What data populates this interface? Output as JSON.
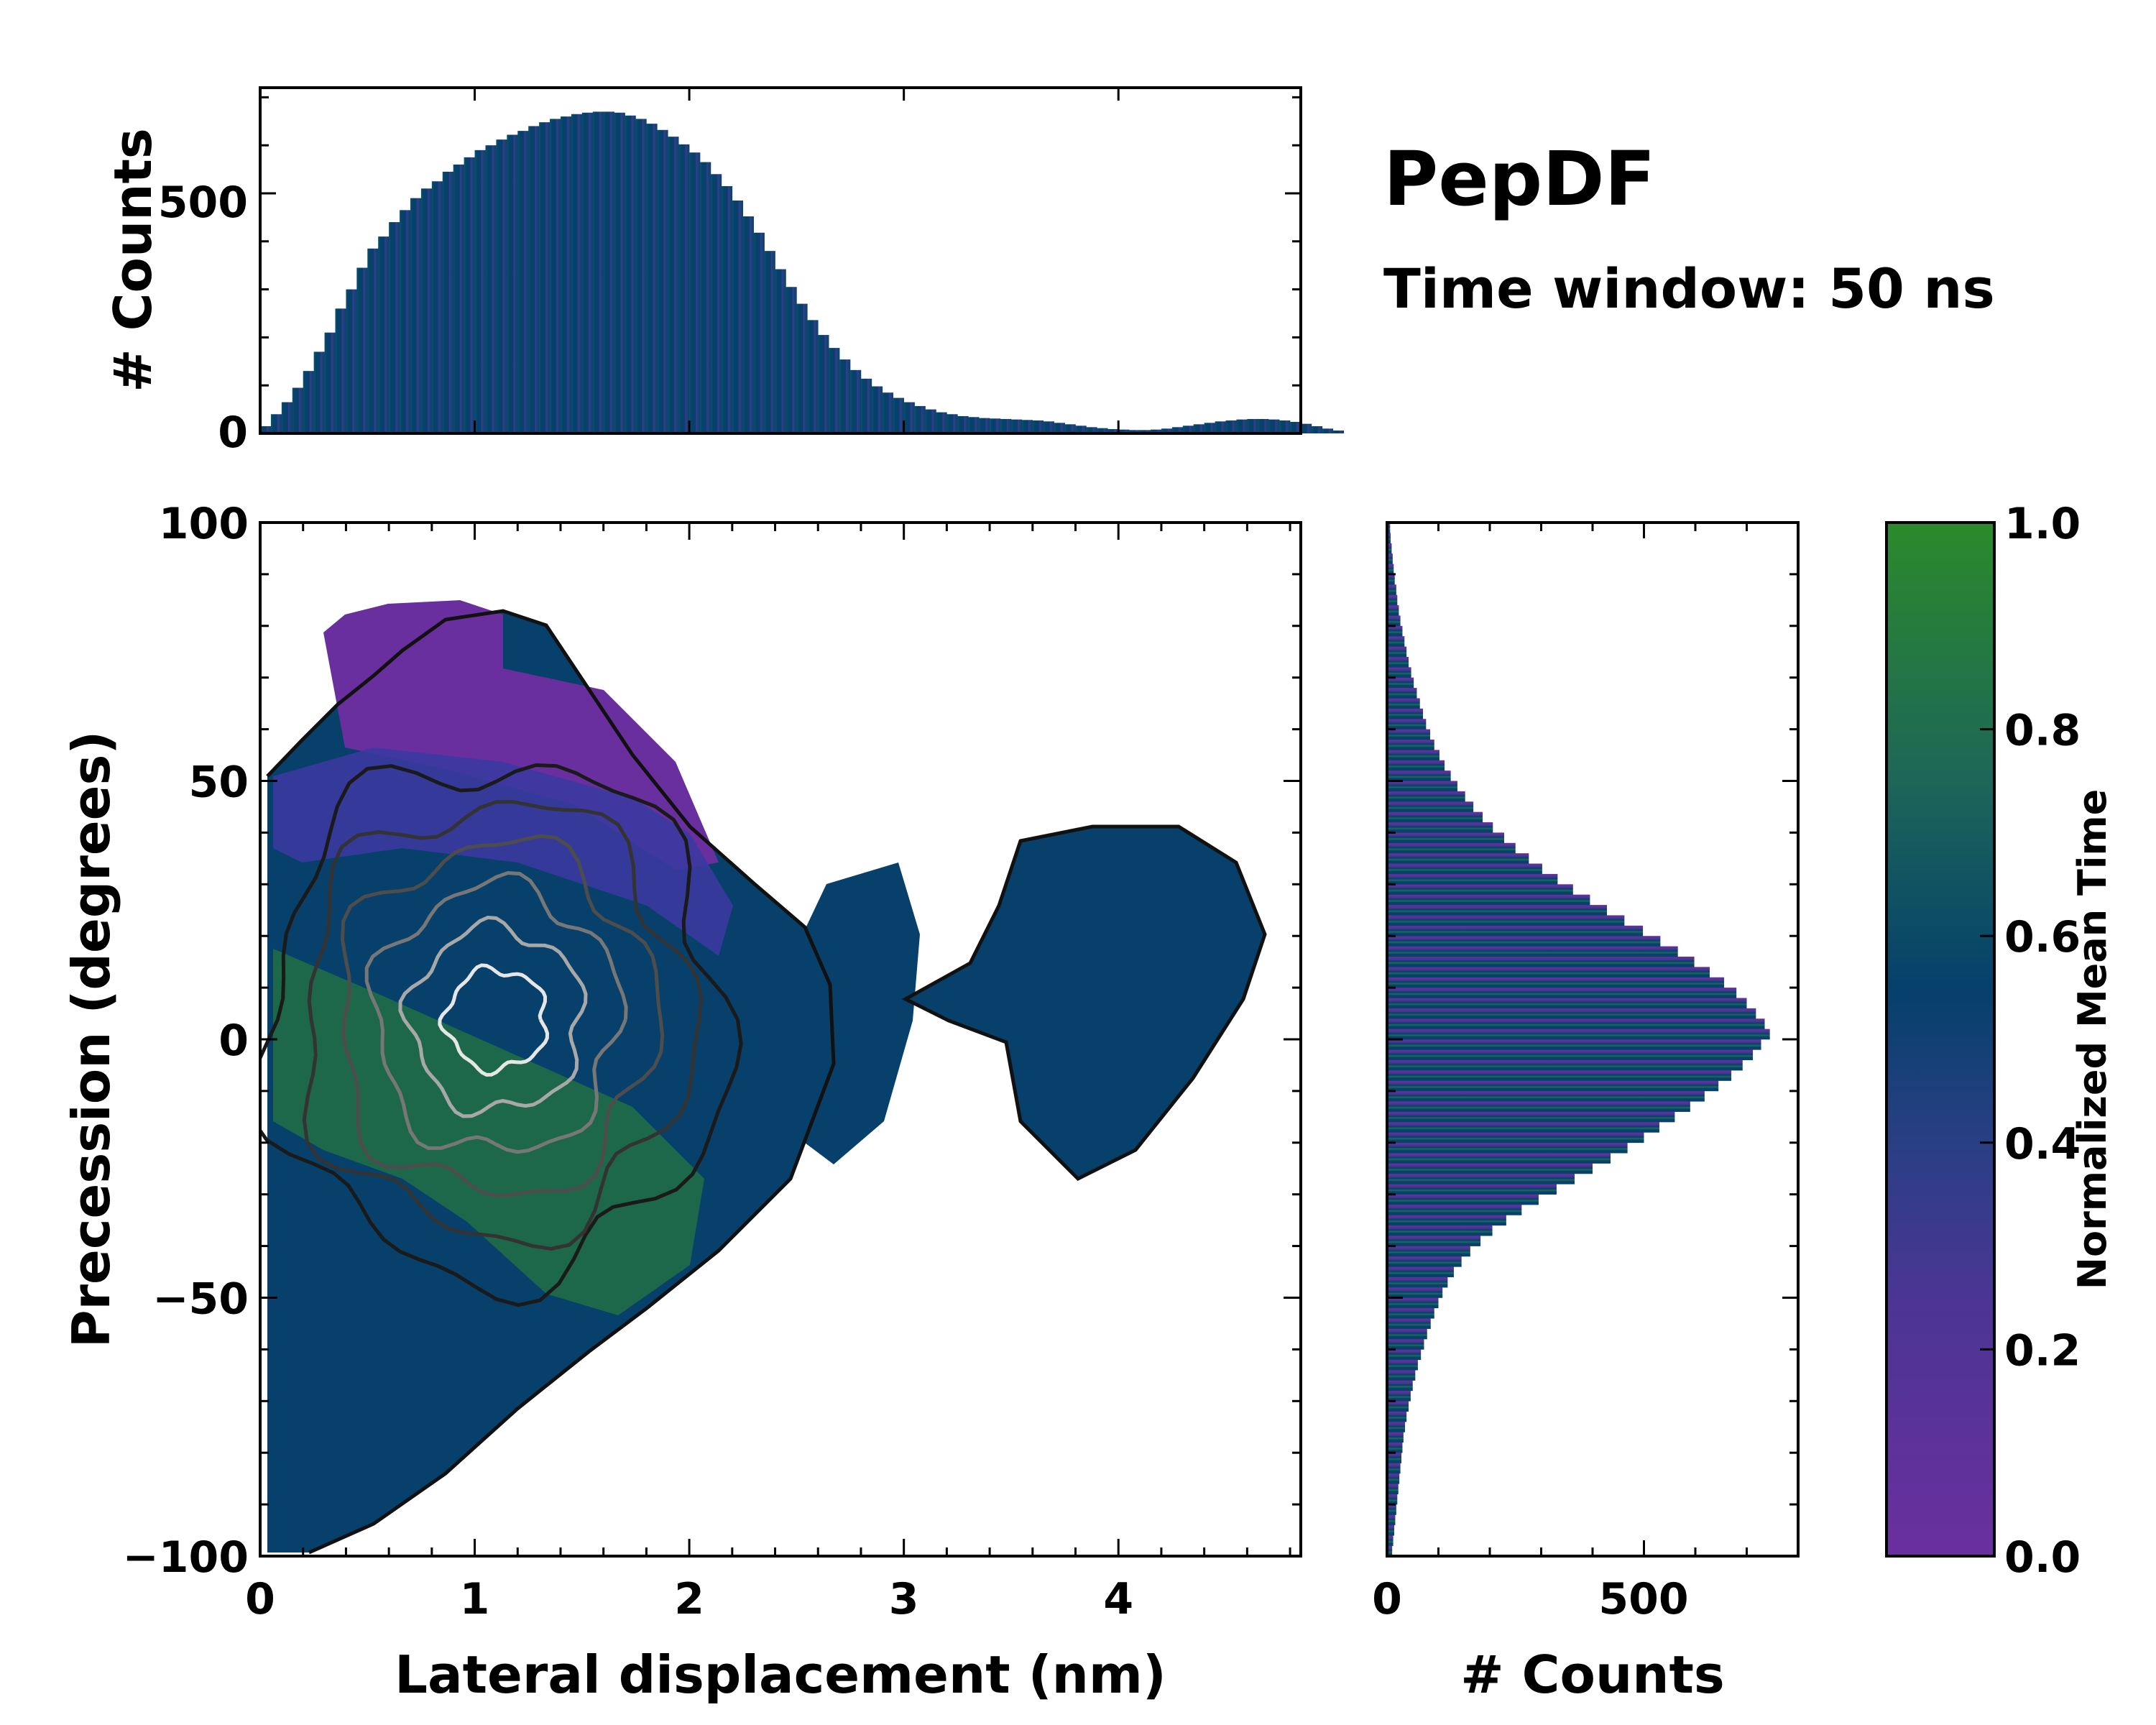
{
  "chart_data": {
    "type": "2d-histogram-with-marginals",
    "title": "PepDF",
    "subtitle": "Time window: 50 ns",
    "xlabel": "Lateral displacement (nm)",
    "ylabel": "Precession (degrees)",
    "xlim": [
      0,
      4.85
    ],
    "ylim": [
      -100,
      100
    ],
    "x_ticks": [
      0,
      1,
      2,
      3,
      4
    ],
    "y_ticks": [
      -100,
      -50,
      0,
      50,
      100
    ],
    "top_marginal": {
      "ylabel": "# Counts",
      "ylim": [
        0,
        720
      ],
      "y_ticks": [
        0,
        500
      ],
      "bin_width": 0.05,
      "values": [
        15,
        40,
        65,
        95,
        130,
        170,
        210,
        260,
        300,
        345,
        385,
        410,
        440,
        465,
        490,
        510,
        525,
        545,
        560,
        575,
        590,
        600,
        612,
        622,
        630,
        640,
        648,
        655,
        660,
        665,
        668,
        670,
        670,
        668,
        662,
        655,
        645,
        632,
        618,
        602,
        585,
        565,
        540,
        515,
        485,
        452,
        418,
        380,
        342,
        305,
        270,
        236,
        205,
        178,
        154,
        132,
        114,
        98,
        85,
        74,
        65,
        57,
        50,
        44,
        40,
        36,
        34,
        32,
        31,
        30,
        29,
        28,
        27,
        25,
        22,
        19,
        16,
        13,
        11,
        9,
        8,
        7,
        7,
        8,
        10,
        13,
        16,
        19,
        22,
        25,
        27,
        29,
        30,
        30,
        29,
        27,
        24,
        20,
        15,
        10,
        6
      ]
    },
    "right_marginal": {
      "xlabel": "# Counts",
      "xlim": [
        0,
        800
      ],
      "x_ticks": [
        0,
        500
      ],
      "bin_width_deg": 2,
      "y_start": -100,
      "values": [
        10,
        12,
        14,
        16,
        18,
        20,
        22,
        24,
        26,
        28,
        30,
        32,
        35,
        38,
        42,
        46,
        50,
        55,
        60,
        66,
        72,
        78,
        85,
        92,
        100,
        108,
        118,
        130,
        145,
        162,
        182,
        205,
        232,
        262,
        295,
        330,
        365,
        400,
        435,
        468,
        500,
        530,
        560,
        590,
        618,
        645,
        670,
        692,
        712,
        728,
        745,
        735,
        718,
        700,
        680,
        656,
        628,
        598,
        566,
        532,
        498,
        462,
        428,
        395,
        362,
        332,
        302,
        276,
        250,
        228,
        206,
        186,
        168,
        152,
        137,
        124,
        112,
        102,
        92,
        84,
        76,
        70,
        64,
        58,
        52,
        47,
        42,
        38,
        34,
        30,
        26,
        23,
        20,
        18,
        15,
        13,
        11,
        9,
        7,
        6
      ]
    },
    "heatmap": {
      "colormap": [
        "#6a2f9e",
        "#05406b",
        "#2b8a2b"
      ],
      "kde_center": [
        1.1,
        8
      ],
      "description_levels": 6
    },
    "colorbar": {
      "label": "Normalized Mean Time",
      "range": [
        0.0,
        1.0
      ],
      "ticks": [
        "0.0",
        "0.2",
        "0.4",
        "0.6",
        "0.8",
        "1.0"
      ],
      "colors": [
        "#6a2f9e",
        "#4b3594",
        "#293f84",
        "#05406b",
        "#1d6658",
        "#2b8a2b"
      ]
    }
  }
}
